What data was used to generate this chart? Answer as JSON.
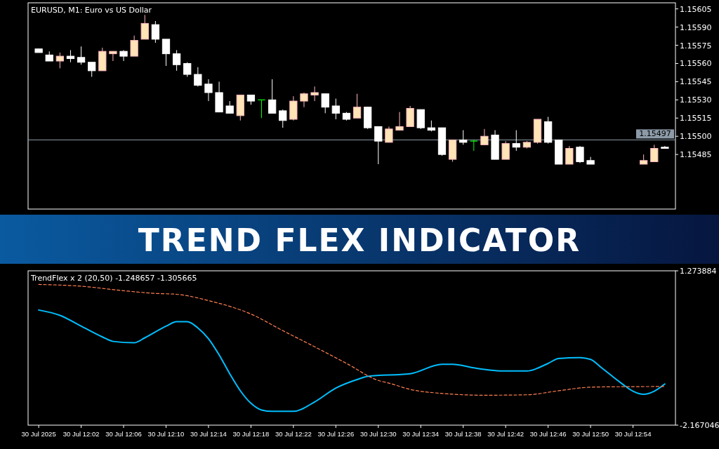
{
  "chart_data": [
    {
      "type": "candlestick",
      "title": "TREND FLEX INDICATOR",
      "subtitle": "EURUSD, M1:  Euro vs US Dollar",
      "x": [
        "2025-07-30T11:58",
        "2025-07-30T11:59",
        "2025-07-30T12:00",
        "2025-07-30T12:01",
        "2025-07-30T12:02",
        "2025-07-30T12:03",
        "2025-07-30T12:04",
        "2025-07-30T12:05",
        "2025-07-30T12:06",
        "2025-07-30T12:07",
        "2025-07-30T12:08",
        "2025-07-30T12:09",
        "2025-07-30T12:10",
        "2025-07-30T12:11",
        "2025-07-30T12:12",
        "2025-07-30T12:13",
        "2025-07-30T12:14",
        "2025-07-30T12:15",
        "2025-07-30T12:16",
        "2025-07-30T12:17",
        "2025-07-30T12:18",
        "2025-07-30T12:19",
        "2025-07-30T12:20",
        "2025-07-30T12:21",
        "2025-07-30T12:22",
        "2025-07-30T12:23",
        "2025-07-30T12:24",
        "2025-07-30T12:25",
        "2025-07-30T12:26",
        "2025-07-30T12:27",
        "2025-07-30T12:28",
        "2025-07-30T12:29",
        "2025-07-30T12:30",
        "2025-07-30T12:31",
        "2025-07-30T12:32",
        "2025-07-30T12:33",
        "2025-07-30T12:34",
        "2025-07-30T12:35",
        "2025-07-30T12:36",
        "2025-07-30T12:37",
        "2025-07-30T12:38",
        "2025-07-30T12:39",
        "2025-07-30T12:40",
        "2025-07-30T12:41",
        "2025-07-30T12:42",
        "2025-07-30T12:43",
        "2025-07-30T12:44",
        "2025-07-30T12:45",
        "2025-07-30T12:46",
        "2025-07-30T12:47",
        "2025-07-30T12:48",
        "2025-07-30T12:49",
        "2025-07-30T12:50",
        "2025-07-30T12:55",
        "2025-07-30T12:56",
        "2025-07-30T12:57"
      ],
      "ohlc": [
        [
          1.15572,
          1.15572,
          1.15569,
          1.15569
        ],
        [
          1.15567,
          1.1557,
          1.15562,
          1.15562
        ],
        [
          1.15562,
          1.15569,
          1.15556,
          1.15566
        ],
        [
          1.15566,
          1.15571,
          1.15561,
          1.15564
        ],
        [
          1.15565,
          1.15574,
          1.15559,
          1.15561
        ],
        [
          1.15561,
          1.15561,
          1.15549,
          1.15554
        ],
        [
          1.15554,
          1.15573,
          1.15554,
          1.1557
        ],
        [
          1.15568,
          1.1557,
          1.15562,
          1.1557
        ],
        [
          1.1557,
          1.15571,
          1.15562,
          1.15566
        ],
        [
          1.15566,
          1.15583,
          1.15566,
          1.15579
        ],
        [
          1.1558,
          1.156,
          1.1558,
          1.15593
        ],
        [
          1.15592,
          1.15595,
          1.15577,
          1.1558
        ],
        [
          1.1558,
          1.1558,
          1.15558,
          1.15568
        ],
        [
          1.15568,
          1.15571,
          1.15554,
          1.15559
        ],
        [
          1.1556,
          1.15561,
          1.15549,
          1.15551
        ],
        [
          1.15551,
          1.15557,
          1.15541,
          1.15542
        ],
        [
          1.15543,
          1.15547,
          1.15529,
          1.15536
        ],
        [
          1.15536,
          1.15545,
          1.1552,
          1.1552
        ],
        [
          1.15525,
          1.15529,
          1.15519,
          1.15519
        ],
        [
          1.15517,
          1.15534,
          1.15513,
          1.15534
        ],
        [
          1.15534,
          1.15534,
          1.15526,
          1.15529
        ],
        [
          1.1553,
          1.1553,
          1.15515,
          1.1553
        ],
        [
          1.1553,
          1.15547,
          1.15519,
          1.15519
        ],
        [
          1.15521,
          1.15522,
          1.15507,
          1.15513
        ],
        [
          1.15514,
          1.15533,
          1.15513,
          1.15529
        ],
        [
          1.15529,
          1.15536,
          1.15524,
          1.15535
        ],
        [
          1.15534,
          1.15541,
          1.15529,
          1.15536
        ],
        [
          1.15535,
          1.15535,
          1.15519,
          1.15524
        ],
        [
          1.15525,
          1.15531,
          1.15514,
          1.15519
        ],
        [
          1.15519,
          1.1552,
          1.15513,
          1.15514
        ],
        [
          1.15515,
          1.15535,
          1.15515,
          1.15524
        ],
        [
          1.15524,
          1.15524,
          1.15506,
          1.15507
        ],
        [
          1.15508,
          1.15508,
          1.15477,
          1.15496
        ],
        [
          1.15495,
          1.15508,
          1.15495,
          1.15506
        ],
        [
          1.15505,
          1.1552,
          1.15505,
          1.15508
        ],
        [
          1.15508,
          1.15525,
          1.15508,
          1.15523
        ],
        [
          1.15522,
          1.15522,
          1.15506,
          1.15507
        ],
        [
          1.15507,
          1.15513,
          1.15504,
          1.15505
        ],
        [
          1.15507,
          1.15507,
          1.15484,
          1.15485
        ],
        [
          1.15481,
          1.15497,
          1.15479,
          1.15497
        ],
        [
          1.15497,
          1.15505,
          1.15493,
          1.15495
        ],
        [
          1.15496,
          1.15497,
          1.15488,
          1.15496
        ],
        [
          1.15493,
          1.15506,
          1.15493,
          1.155
        ],
        [
          1.15501,
          1.15505,
          1.15481,
          1.15481
        ],
        [
          1.15481,
          1.15496,
          1.15481,
          1.15494
        ],
        [
          1.15494,
          1.15505,
          1.15488,
          1.15491
        ],
        [
          1.15491,
          1.15496,
          1.1549,
          1.15495
        ],
        [
          1.15495,
          1.15514,
          1.15494,
          1.15514
        ],
        [
          1.15512,
          1.15516,
          1.15494,
          1.15495
        ],
        [
          1.15497,
          1.15497,
          1.15477,
          1.15477
        ],
        [
          1.15477,
          1.15492,
          1.15477,
          1.1549
        ],
        [
          1.15491,
          1.15492,
          1.15478,
          1.15479
        ],
        [
          1.1548,
          1.15483,
          1.15477,
          1.15477
        ],
        [
          1.15477,
          1.15485,
          1.15477,
          1.1548
        ],
        [
          1.15479,
          1.15493,
          1.15479,
          1.1549
        ],
        [
          1.15491,
          1.15492,
          1.1549,
          1.1549
        ]
      ],
      "colors": [
        "#ffffff",
        "#ffffff",
        "#ffe4b5",
        "#ffffff",
        "#ffffff",
        "#ffffff",
        "#ffe4b5",
        "#ffe4b5",
        "#ffffff",
        "#ffe4b5",
        "#ffe4b5",
        "#ffffff",
        "#ffffff",
        "#ffffff",
        "#ffffff",
        "#ffffff",
        "#ffffff",
        "#ffffff",
        "#ffffff",
        "#ffe4b5",
        "#ffffff",
        "#00ff00",
        "#ffffff",
        "#ffffff",
        "#ffe4b5",
        "#ffe4b5",
        "#ffe4b5",
        "#ffffff",
        "#ffffff",
        "#ffffff",
        "#ffe4b5",
        "#ffffff",
        "#ffffff",
        "#ffe4b5",
        "#ffe4b5",
        "#ffe4b5",
        "#ffffff",
        "#ffffff",
        "#ffffff",
        "#ffe4b5",
        "#ffffff",
        "#00ff00",
        "#ffe4b5",
        "#ffffff",
        "#ffe4b5",
        "#ffffff",
        "#ffe4b5",
        "#ffe4b5",
        "#ffffff",
        "#ffffff",
        "#ffe4b5",
        "#ffffff",
        "#ffffff",
        "#ffe4b5",
        "#ffe4b5",
        "#ffffff"
      ],
      "xlim": [
        "2025-07-30T11:57",
        "2025-07-30T12:58"
      ],
      "ylim": [
        1.1544,
        1.1561
      ],
      "yticks": [
        1.15605,
        {
          "value": 1.1559,
          "label": "1.15590"
        },
        1.15575,
        {
          "value": 1.1556,
          "label": "1.15560"
        },
        1.15545,
        {
          "value": 1.1553,
          "label": "1.15530"
        },
        1.15515,
        {
          "value": 1.155,
          "label": "1.15500"
        },
        1.15485
      ],
      "tick_labels": "y",
      "ref_lines": [
        {
          "axis": "y",
          "value": 1.15497,
          "label": "1.15497",
          "color": "#8c9aa8"
        }
      ]
    },
    {
      "type": "line",
      "subtitle": "TrendFlex x 2 (20,50) -1.248657 -1.305665",
      "series": [
        {
          "color": "#00bfff",
          "line_style": "solid",
          "x": [
            "2025-07-30T11:58",
            "2025-07-30T12:00",
            "2025-07-30T12:02",
            "2025-07-30T12:04",
            "2025-07-30T12:05",
            "2025-07-30T12:07",
            "2025-07-30T12:08",
            "2025-07-30T12:10",
            "2025-07-30T12:11",
            "2025-07-30T12:12",
            "2025-07-30T12:13",
            "2025-07-30T12:14",
            "2025-07-30T12:15",
            "2025-07-30T12:16",
            "2025-07-30T12:17",
            "2025-07-30T12:18",
            "2025-07-30T12:19",
            "2025-07-30T12:20",
            "2025-07-30T12:22",
            "2025-07-30T12:24",
            "2025-07-30T12:26",
            "2025-07-30T12:28",
            "2025-07-30T12:29",
            "2025-07-30T12:33",
            "2025-07-30T12:36",
            "2025-07-30T12:37",
            "2025-07-30T12:39",
            "2025-07-30T12:42",
            "2025-07-30T12:44",
            "2025-07-30T12:46",
            "2025-07-30T12:47",
            "2025-07-30T12:49",
            "2025-07-30T12:50",
            "2025-07-30T12:51",
            "2025-07-30T12:53",
            "2025-07-30T12:54",
            "2025-07-30T12:55",
            "2025-07-30T12:56",
            "2025-07-30T12:57"
          ],
          "values": [
            0.4,
            0.28,
            0.04,
            -0.2,
            -0.3,
            -0.33,
            -0.22,
            0.04,
            0.14,
            0.14,
            0.0,
            -0.24,
            -0.6,
            -1.02,
            -1.4,
            -1.68,
            -1.83,
            -1.86,
            -1.86,
            -1.65,
            -1.34,
            -1.15,
            -1.08,
            -1.02,
            -0.81,
            -0.81,
            -0.89,
            -0.96,
            -0.96,
            -0.79,
            -0.68,
            -0.66,
            -0.7,
            -0.88,
            -1.25,
            -1.41,
            -1.48,
            -1.41,
            -1.248657
          ]
        },
        {
          "color": "#ff7f50",
          "line_style": "dashed",
          "x": [
            "2025-07-30T11:58",
            "2025-07-30T12:02",
            "2025-07-30T12:06",
            "2025-07-30T12:09",
            "2025-07-30T12:11",
            "2025-07-30T12:14",
            "2025-07-30T12:18",
            "2025-07-30T12:21",
            "2025-07-30T12:24",
            "2025-07-30T12:27",
            "2025-07-30T12:30",
            "2025-07-30T12:31",
            "2025-07-30T12:33",
            "2025-07-30T12:36",
            "2025-07-30T12:40",
            "2025-07-30T12:44",
            "2025-07-30T12:47",
            "2025-07-30T12:50",
            "2025-07-30T12:53",
            "2025-07-30T12:57"
          ],
          "values": [
            0.97,
            0.93,
            0.83,
            0.77,
            0.75,
            0.61,
            0.31,
            -0.06,
            -0.42,
            -0.79,
            -1.17,
            -1.23,
            -1.37,
            -1.46,
            -1.5,
            -1.49,
            -1.4,
            -1.32,
            -1.31,
            -1.305665
          ]
        }
      ],
      "xlim": [
        "2025-07-30T11:57",
        "2025-07-30T12:58"
      ],
      "ylim": [
        -2.167046,
        1.273884
      ],
      "yticks": [
        1.273884,
        -2.167046
      ],
      "xticks": [
        {
          "value": "2025-07-30T11:58",
          "label": "30 Jul 2025"
        },
        {
          "value": "2025-07-30T12:02",
          "label": "30 Jul 12:02"
        },
        {
          "value": "2025-07-30T12:06",
          "label": "30 Jul 12:06"
        },
        {
          "value": "2025-07-30T12:10",
          "label": "30 Jul 12:10"
        },
        {
          "value": "2025-07-30T12:14",
          "label": "30 Jul 12:14"
        },
        {
          "value": "2025-07-30T12:18",
          "label": "30 Jul 12:18"
        },
        {
          "value": "2025-07-30T12:22",
          "label": "30 Jul 12:22"
        },
        {
          "value": "2025-07-30T12:26",
          "label": "30 Jul 12:26"
        },
        {
          "value": "2025-07-30T12:30",
          "label": "30 Jul 12:30"
        },
        {
          "value": "2025-07-30T12:34",
          "label": "30 Jul 12:34"
        },
        {
          "value": "2025-07-30T12:38",
          "label": "30 Jul 12:38"
        },
        {
          "value": "2025-07-30T12:42",
          "label": "30 Jul 12:42"
        },
        {
          "value": "2025-07-30T12:46",
          "label": "30 Jul 12:46"
        },
        {
          "value": "2025-07-30T12:50",
          "label": "30 Jul 12:50"
        },
        {
          "value": "2025-07-30T12:54",
          "label": "30 Jul 12:54"
        }
      ]
    }
  ]
}
